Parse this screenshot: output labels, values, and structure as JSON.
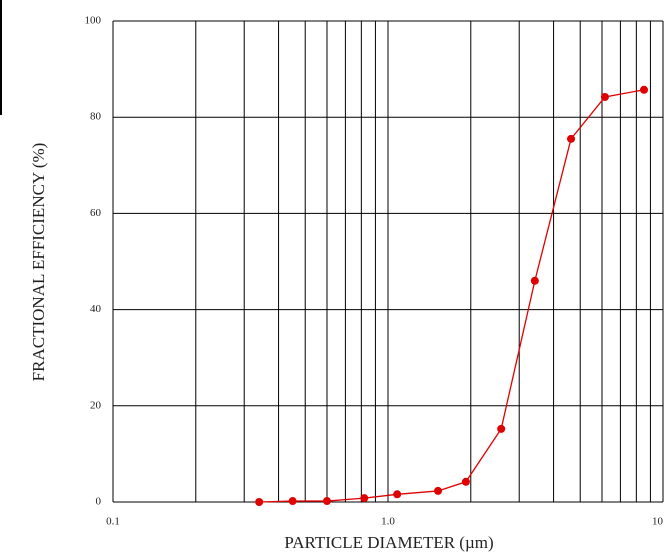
{
  "chart_data": {
    "type": "line",
    "xlabel": "PARTICLE DIAMETER (µm)",
    "ylabel": "FRACTIONAL EFFICIENCY (%)",
    "xscale": "log",
    "xlim": [
      0.1,
      10
    ],
    "xticks": [
      {
        "value": 0.1,
        "label": "0.1"
      },
      {
        "value": 1,
        "label": "1.0"
      },
      10
    ],
    "xminor_ticks": [
      0.2,
      0.3,
      0.4,
      0.5,
      0.6,
      0.7,
      0.8,
      0.9,
      2,
      3,
      4,
      5,
      6,
      7,
      8,
      9
    ],
    "ylim": [
      0,
      100
    ],
    "yticks": [
      0,
      20,
      40,
      60,
      80,
      100
    ],
    "grid": true,
    "x": [
      0.34,
      0.45,
      0.6,
      0.82,
      1.08,
      1.52,
      1.92,
      2.58,
      3.42,
      4.63,
      6.15,
      8.53
    ],
    "series": [
      {
        "name": "Fractional efficiency",
        "color": "#e00000",
        "values": [
          0,
          0.2,
          0.2,
          0.8,
          1.6,
          2.3,
          4.2,
          15.2,
          46,
          75.5,
          84.2,
          85.7
        ]
      }
    ]
  }
}
